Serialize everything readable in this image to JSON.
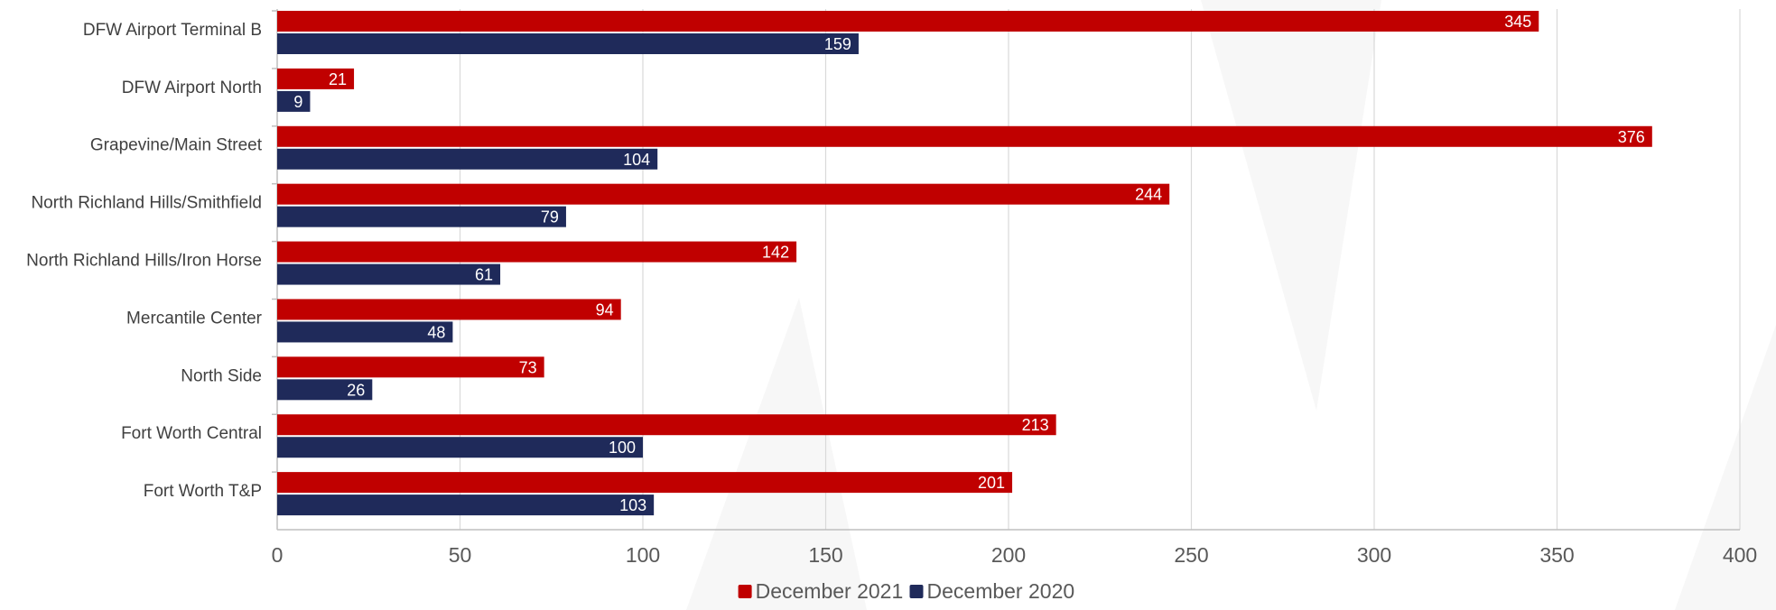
{
  "chart_data": {
    "type": "bar",
    "orientation": "horizontal",
    "categories": [
      "DFW Airport Terminal B",
      "DFW Airport North",
      "Grapevine/Main Street",
      "North Richland Hills/Smithfield",
      "North Richland Hills/Iron Horse",
      "Mercantile Center",
      "North Side",
      "Fort Worth Central",
      "Fort Worth T&P"
    ],
    "series": [
      {
        "name": "December 2021",
        "color": "#c00000",
        "values": [
          345,
          21,
          376,
          244,
          142,
          94,
          73,
          213,
          201
        ]
      },
      {
        "name": "December 2020",
        "color": "#1f2a5a",
        "values": [
          159,
          9,
          104,
          79,
          61,
          48,
          26,
          100,
          103
        ]
      }
    ],
    "xlim": [
      0,
      400
    ],
    "xticks": [
      0,
      50,
      100,
      150,
      200,
      250,
      300,
      350,
      400
    ],
    "xlabel": "",
    "ylabel": "",
    "grid": true,
    "data_labels": true,
    "legend_position": "bottom",
    "gridline_color": "#d9d9d9",
    "axis_color": "#bfbfbf"
  }
}
